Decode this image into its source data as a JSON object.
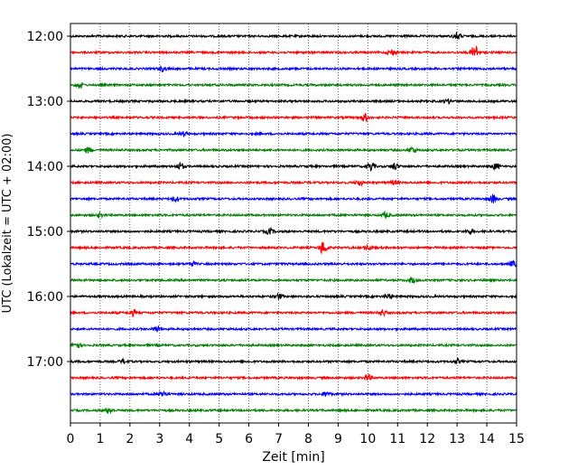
{
  "chart_data": {
    "type": "line",
    "xlabel": "Zeit  [min]",
    "ylabel": "UTC (Lokalzeit = UTC + 02:00)",
    "xlim": [
      0,
      15
    ],
    "x_ticks": [
      0,
      1,
      2,
      3,
      4,
      5,
      6,
      7,
      8,
      9,
      10,
      11,
      12,
      13,
      14,
      15
    ],
    "x_tick_labels": [
      "0",
      "1",
      "2",
      "3",
      "4",
      "5",
      "6",
      "7",
      "8",
      "9",
      "10",
      "11",
      "12",
      "13",
      "14",
      "15"
    ],
    "y_tick_labels": [
      "12:00",
      "13:00",
      "14:00",
      "15:00",
      "16:00",
      "17:00"
    ],
    "grid": "x-dotted",
    "trace_interval_minutes": 15,
    "colors": [
      "#000000",
      "#ff0000",
      "#0000ff",
      "#008000"
    ],
    "traces": [
      {
        "start": "12:00",
        "color": "#000000",
        "bursts": [
          [
            13.0,
            1.2
          ]
        ]
      },
      {
        "start": "12:15",
        "color": "#ff0000",
        "bursts": [
          [
            10.8,
            1.0
          ],
          [
            13.6,
            2.5
          ]
        ]
      },
      {
        "start": "12:30",
        "color": "#0000ff",
        "bursts": [
          [
            3.1,
            0.8
          ]
        ]
      },
      {
        "start": "12:45",
        "color": "#008000",
        "bursts": [
          [
            0.3,
            1.0
          ]
        ]
      },
      {
        "start": "13:00",
        "color": "#000000",
        "bursts": [
          [
            12.7,
            0.6
          ]
        ]
      },
      {
        "start": "13:15",
        "color": "#ff0000",
        "bursts": [
          [
            9.9,
            1.3
          ]
        ]
      },
      {
        "start": "13:30",
        "color": "#0000ff",
        "bursts": [
          [
            3.8,
            0.6
          ]
        ]
      },
      {
        "start": "13:45",
        "color": "#008000",
        "bursts": [
          [
            0.6,
            0.9
          ],
          [
            11.5,
            1.0
          ]
        ]
      },
      {
        "start": "14:00",
        "color": "#000000",
        "bursts": [
          [
            3.7,
            1.1
          ],
          [
            10.1,
            1.5
          ],
          [
            10.9,
            1.1
          ],
          [
            14.3,
            1.0
          ]
        ]
      },
      {
        "start": "14:15",
        "color": "#ff0000",
        "bursts": [
          [
            9.7,
            1.0
          ],
          [
            10.9,
            0.6
          ]
        ]
      },
      {
        "start": "14:30",
        "color": "#0000ff",
        "bursts": [
          [
            3.5,
            0.7
          ],
          [
            14.2,
            1.3
          ]
        ]
      },
      {
        "start": "14:45",
        "color": "#008000",
        "bursts": [
          [
            1.0,
            0.6
          ],
          [
            10.6,
            0.9
          ]
        ]
      },
      {
        "start": "15:00",
        "color": "#000000",
        "bursts": [
          [
            6.7,
            0.9
          ],
          [
            13.4,
            0.6
          ]
        ]
      },
      {
        "start": "15:15",
        "color": "#ff0000",
        "bursts": [
          [
            8.5,
            2.2
          ],
          [
            10.0,
            0.8
          ]
        ]
      },
      {
        "start": "15:30",
        "color": "#0000ff",
        "bursts": [
          [
            4.1,
            0.6
          ],
          [
            14.9,
            1.0
          ]
        ]
      },
      {
        "start": "15:45",
        "color": "#008000",
        "bursts": [
          [
            11.5,
            1.0
          ]
        ]
      },
      {
        "start": "16:00",
        "color": "#000000",
        "bursts": [
          [
            7.0,
            0.9
          ],
          [
            10.7,
            0.7
          ]
        ]
      },
      {
        "start": "16:15",
        "color": "#ff0000",
        "bursts": [
          [
            2.1,
            1.0
          ],
          [
            10.5,
            1.0
          ]
        ]
      },
      {
        "start": "16:30",
        "color": "#0000ff",
        "bursts": [
          [
            2.9,
            0.9
          ]
        ]
      },
      {
        "start": "16:45",
        "color": "#008000",
        "bursts": [
          [
            0.2,
            1.1
          ]
        ]
      },
      {
        "start": "17:00",
        "color": "#000000",
        "bursts": [
          [
            1.8,
            0.7
          ],
          [
            13.0,
            0.7
          ]
        ]
      },
      {
        "start": "17:15",
        "color": "#ff0000",
        "bursts": [
          [
            10.0,
            1.0
          ]
        ]
      },
      {
        "start": "17:30",
        "color": "#0000ff",
        "bursts": [
          [
            3.1,
            1.0
          ],
          [
            8.6,
            0.8
          ]
        ]
      },
      {
        "start": "17:45",
        "color": "#008000",
        "bursts": [
          [
            1.3,
            1.0
          ]
        ]
      }
    ]
  }
}
